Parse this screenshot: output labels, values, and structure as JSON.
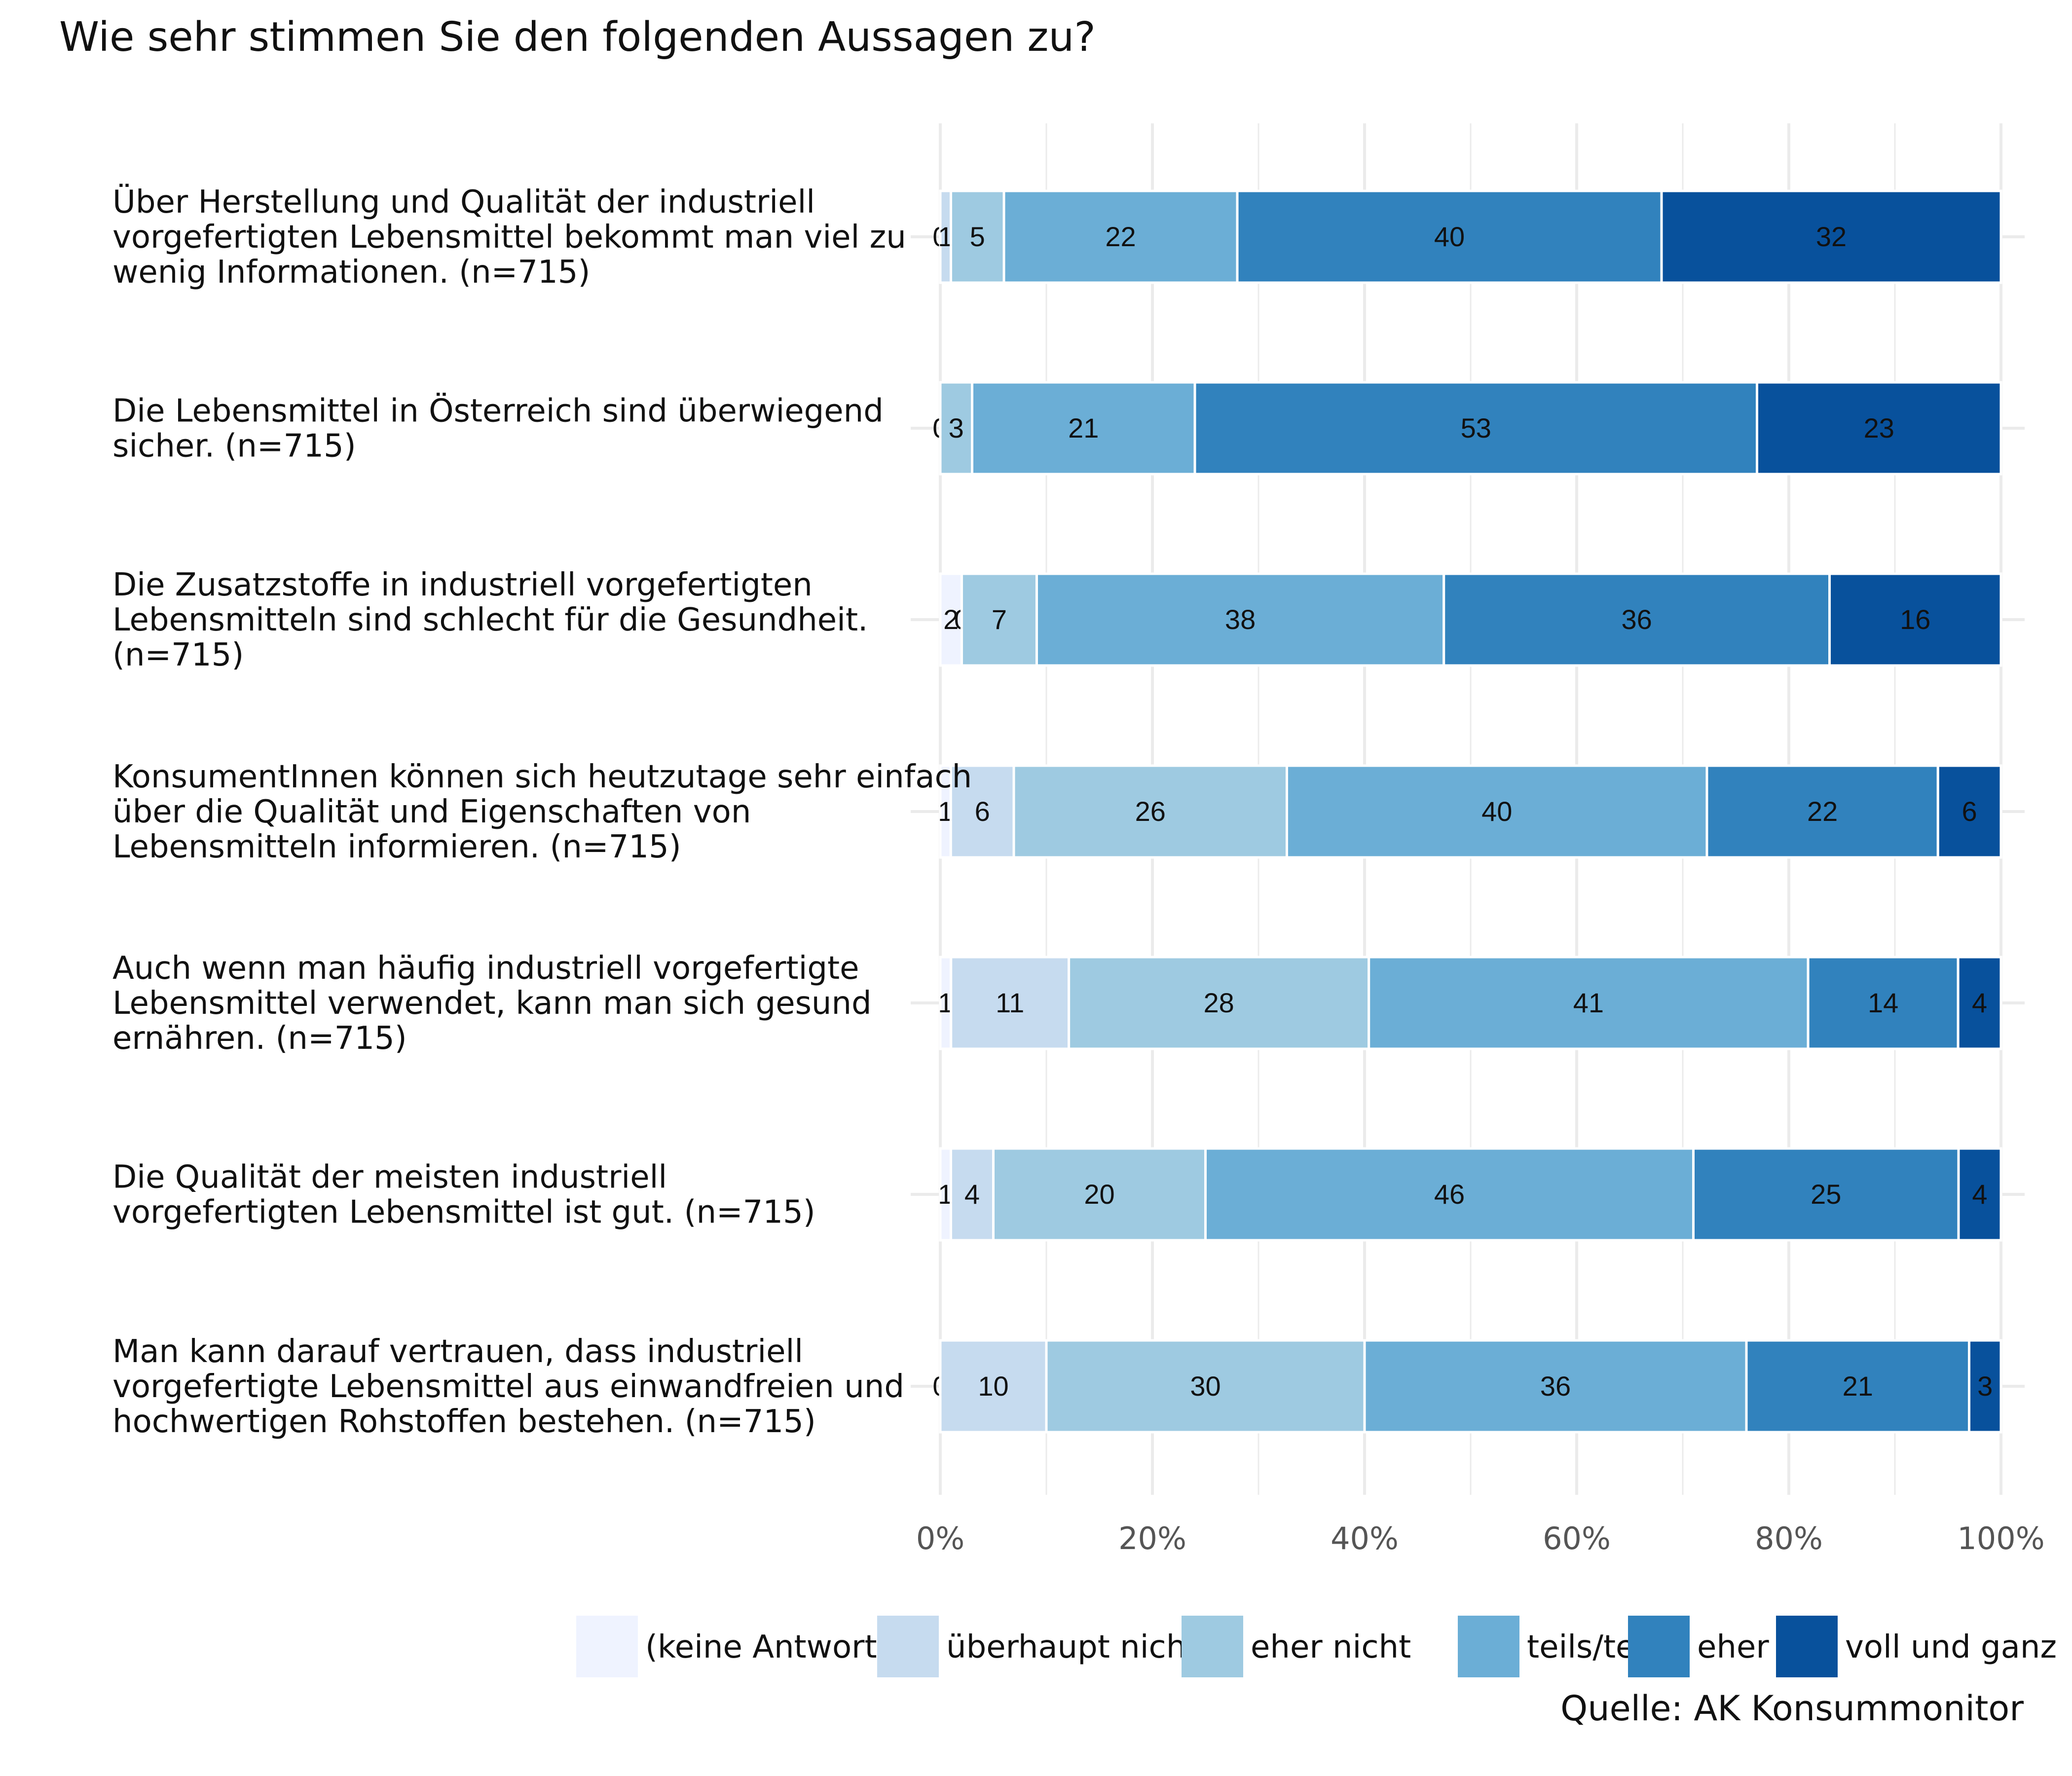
{
  "chart_data": {
    "type": "bar",
    "orientation": "horizontal",
    "stacked": true,
    "title": "Wie sehr stimmen Sie den folgenden Aussagen zu?",
    "source": "Quelle: AK Konsummonitor",
    "xlim": [
      0,
      100
    ],
    "x_ticks": [
      "0%",
      "20%",
      "40%",
      "60%",
      "80%",
      "100%"
    ],
    "grid": true,
    "legend_position": "bottom",
    "series": [
      {
        "name": "(keine Antwort)",
        "color": "#eff3ff"
      },
      {
        "name": "überhaupt nicht",
        "color": "#c6dbef"
      },
      {
        "name": "eher nicht",
        "color": "#9ecae1"
      },
      {
        "name": "teils/teils",
        "color": "#6baed6"
      },
      {
        "name": "eher",
        "color": "#3182bd"
      },
      {
        "name": "voll und ganz",
        "color": "#08519c"
      }
    ],
    "categories": [
      {
        "label": [
          "Über Herstellung und Qualität der industriell",
          "vorgefertigten Lebensmittel bekommt man viel zu",
          "wenig Informationen. (n=715)"
        ],
        "values": [
          0,
          1,
          5,
          22,
          40,
          32
        ],
        "labels": [
          "0",
          "1",
          "5",
          "22",
          "40",
          "32"
        ]
      },
      {
        "label": [
          "Die Lebensmittel in Österreich sind überwiegend",
          "sicher. (n=715)"
        ],
        "values": [
          0,
          0,
          3,
          21,
          53,
          23
        ],
        "labels": [
          "0",
          "0",
          "3",
          "21",
          "53",
          "23"
        ]
      },
      {
        "label": [
          "Die Zusatzstoffe in industriell vorgefertigten",
          "Lebensmitteln sind schlecht für die Gesundheit.",
          "(n=715)"
        ],
        "values": [
          2,
          0,
          7,
          38,
          36,
          16
        ],
        "labels": [
          "2",
          "0",
          "7",
          "38",
          "36",
          "16"
        ]
      },
      {
        "label": [
          "KonsumentInnen können sich heutzutage sehr einfach",
          "über die Qualität und Eigenschaften von",
          "Lebensmitteln informieren. (n=715)"
        ],
        "values": [
          1,
          6,
          26,
          40,
          22,
          6
        ],
        "labels": [
          "1",
          "6",
          "26",
          "40",
          "22",
          "6"
        ]
      },
      {
        "label": [
          "Auch wenn man häufig industriell vorgefertigte",
          "Lebensmittel verwendet, kann man sich gesund",
          "ernähren. (n=715)"
        ],
        "values": [
          1,
          11,
          28,
          41,
          14,
          4
        ],
        "labels": [
          "1",
          "11",
          "28",
          "41",
          "14",
          "4"
        ]
      },
      {
        "label": [
          "Die Qualität der meisten industriell",
          "vorgefertigten Lebensmittel ist gut. (n=715)"
        ],
        "values": [
          1,
          4,
          20,
          46,
          25,
          4
        ],
        "labels": [
          "1",
          "4",
          "20",
          "46",
          "25",
          "4"
        ]
      },
      {
        "label": [
          "Man kann darauf vertrauen, dass industriell",
          "vorgefertigte Lebensmittel aus einwandfreien und",
          "hochwertigen Rohstoffen bestehen. (n=715)"
        ],
        "values": [
          0,
          10,
          30,
          36,
          21,
          3
        ],
        "labels": [
          "0",
          "10",
          "30",
          "36",
          "21",
          "3"
        ]
      }
    ]
  }
}
